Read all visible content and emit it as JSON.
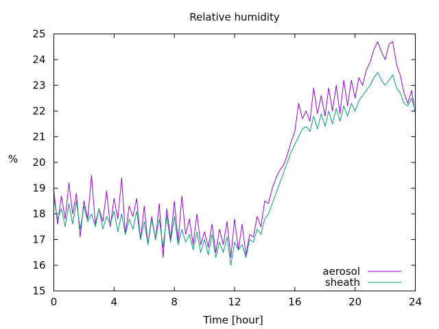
{
  "chart_data": {
    "type": "line",
    "title": "Relative humidity",
    "xlabel": "Time [hour]",
    "ylabel": "%",
    "xlim": [
      0,
      24
    ],
    "ylim": [
      15,
      25
    ],
    "xticks": [
      0,
      4,
      8,
      12,
      16,
      20,
      24
    ],
    "yticks": [
      15,
      16,
      17,
      18,
      19,
      20,
      21,
      22,
      23,
      24,
      25
    ],
    "grid": false,
    "legend": {
      "placement": "bottom-right"
    },
    "series": [
      {
        "name": "aerosol",
        "color": "#9400d3",
        "x": [
          0,
          0.25,
          0.5,
          0.75,
          1,
          1.25,
          1.5,
          1.75,
          2,
          2.25,
          2.5,
          2.75,
          3,
          3.25,
          3.5,
          3.75,
          4,
          4.25,
          4.5,
          4.75,
          5,
          5.25,
          5.5,
          5.75,
          6,
          6.25,
          6.5,
          6.75,
          7,
          7.25,
          7.5,
          7.75,
          8,
          8.25,
          8.5,
          8.75,
          9,
          9.25,
          9.5,
          9.75,
          10,
          10.25,
          10.5,
          10.75,
          11,
          11.25,
          11.5,
          11.75,
          12,
          12.25,
          12.5,
          12.75,
          13,
          13.25,
          13.5,
          13.75,
          14,
          14.25,
          14.5,
          14.75,
          15,
          15.25,
          15.5,
          15.75,
          16,
          16.25,
          16.5,
          16.75,
          17,
          17.25,
          17.5,
          17.75,
          18,
          18.25,
          18.5,
          18.75,
          19,
          19.25,
          19.5,
          19.75,
          20,
          20.25,
          20.5,
          20.75,
          21,
          21.25,
          21.5,
          21.75,
          22,
          22.25,
          22.5,
          22.75,
          23,
          23.25,
          23.5,
          23.75,
          24
        ],
        "y": [
          18.9,
          17.6,
          18.7,
          17.8,
          19.2,
          18.0,
          18.8,
          17.1,
          18.5,
          17.8,
          19.5,
          17.6,
          18.2,
          17.7,
          18.9,
          17.5,
          18.6,
          17.8,
          19.4,
          17.2,
          18.3,
          17.9,
          18.6,
          17.0,
          18.3,
          16.8,
          17.9,
          17.0,
          18.4,
          16.3,
          18.2,
          17.0,
          18.5,
          16.9,
          18.7,
          17.2,
          17.8,
          16.8,
          18.0,
          16.8,
          17.3,
          16.7,
          17.6,
          16.5,
          17.4,
          16.8,
          17.7,
          16.3,
          17.8,
          16.6,
          17.6,
          16.4,
          17.2,
          17.1,
          17.9,
          17.5,
          18.5,
          18.4,
          19.0,
          19.4,
          19.7,
          19.9,
          20.3,
          20.8,
          21.2,
          22.3,
          21.7,
          22.0,
          21.6,
          22.9,
          21.9,
          22.6,
          21.8,
          22.9,
          22.0,
          23.0,
          21.9,
          23.2,
          22.2,
          23.2,
          22.5,
          23.3,
          23.0,
          23.6,
          23.9,
          24.4,
          24.7,
          24.3,
          24.0,
          24.6,
          24.7,
          23.8,
          23.4,
          22.7,
          22.3,
          22.8,
          21.9
        ]
      },
      {
        "name": "sheath",
        "color": "#009e73",
        "x": [
          0,
          0.25,
          0.5,
          0.75,
          1,
          1.25,
          1.5,
          1.75,
          2,
          2.25,
          2.5,
          2.75,
          3,
          3.25,
          3.5,
          3.75,
          4,
          4.25,
          4.5,
          4.75,
          5,
          5.25,
          5.5,
          5.75,
          6,
          6.25,
          6.5,
          6.75,
          7,
          7.25,
          7.5,
          7.75,
          8,
          8.25,
          8.5,
          8.75,
          9,
          9.25,
          9.5,
          9.75,
          10,
          10.25,
          10.5,
          10.75,
          11,
          11.25,
          11.5,
          11.75,
          12,
          12.25,
          12.5,
          12.75,
          13,
          13.25,
          13.5,
          13.75,
          14,
          14.25,
          14.5,
          14.75,
          15,
          15.25,
          15.5,
          15.75,
          16,
          16.25,
          16.5,
          16.75,
          17,
          17.25,
          17.5,
          17.75,
          18,
          18.25,
          18.5,
          18.75,
          19,
          19.25,
          19.5,
          19.75,
          20,
          20.25,
          20.5,
          20.75,
          21,
          21.25,
          21.5,
          21.75,
          22,
          22.25,
          22.5,
          22.75,
          23,
          23.25,
          23.5,
          23.75,
          24
        ],
        "y": [
          18.6,
          17.8,
          18.2,
          17.5,
          18.4,
          17.6,
          18.5,
          17.4,
          18.3,
          17.7,
          18.0,
          17.5,
          18.2,
          17.4,
          17.9,
          17.6,
          18.1,
          17.3,
          18.0,
          17.2,
          17.8,
          17.4,
          18.1,
          17.0,
          17.7,
          16.8,
          17.8,
          17.0,
          17.8,
          16.7,
          17.9,
          16.9,
          17.9,
          16.8,
          17.4,
          16.9,
          17.2,
          16.6,
          17.3,
          16.5,
          17.0,
          16.4,
          17.2,
          16.3,
          16.9,
          16.5,
          17.1,
          16.0,
          16.9,
          16.6,
          16.8,
          16.3,
          17.0,
          16.9,
          17.4,
          17.2,
          17.8,
          18.0,
          18.4,
          18.8,
          19.2,
          19.6,
          20.0,
          20.4,
          20.7,
          21.0,
          21.3,
          21.4,
          21.2,
          21.8,
          21.3,
          21.9,
          21.4,
          22.0,
          21.5,
          22.1,
          21.6,
          22.2,
          21.8,
          22.3,
          22.0,
          22.4,
          22.6,
          22.8,
          23.0,
          23.3,
          23.5,
          23.2,
          23.0,
          23.2,
          23.4,
          22.9,
          22.7,
          22.3,
          22.2,
          22.5,
          22.0
        ]
      }
    ]
  }
}
